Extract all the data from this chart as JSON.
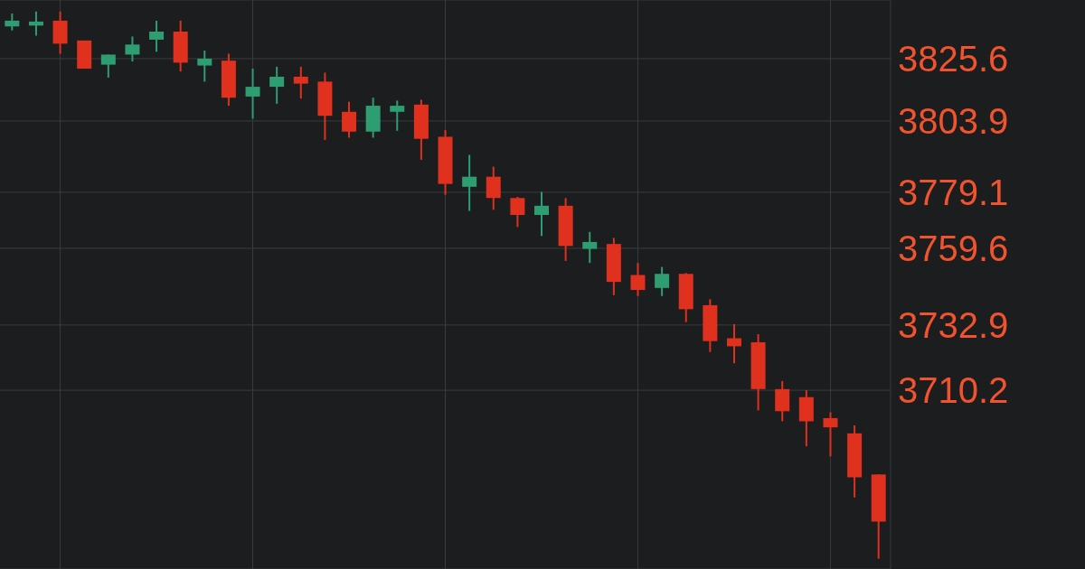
{
  "chart_data": {
    "type": "candlestick",
    "categories": [
      null,
      null,
      null,
      null,
      null,
      null,
      null,
      null,
      null,
      null,
      null,
      null,
      null,
      null,
      null,
      null,
      null,
      null,
      null,
      null,
      null,
      null,
      null,
      null,
      null,
      null,
      null,
      null,
      null,
      null,
      null,
      null,
      null,
      null,
      null,
      null,
      null
    ],
    "ohlc": [
      [
        3836.8,
        3841.3,
        3835.4,
        3838.8
      ],
      [
        3837.1,
        3842.0,
        3833.6,
        3838.5
      ],
      [
        3838.8,
        3842.0,
        3827.3,
        3830.8
      ],
      [
        3831.9,
        3831.9,
        3822.1,
        3822.1
      ],
      [
        3823.5,
        3827.0,
        3819.0,
        3827.0
      ],
      [
        3827.0,
        3833.3,
        3824.6,
        3830.5
      ],
      [
        3832.2,
        3838.8,
        3828.0,
        3835.0
      ],
      [
        3835.0,
        3838.8,
        3821.1,
        3824.2
      ],
      [
        3823.2,
        3828.4,
        3817.6,
        3825.6
      ],
      [
        3824.9,
        3827.3,
        3809.2,
        3812.0
      ],
      [
        3812.4,
        3822.1,
        3804.7,
        3815.8
      ],
      [
        3815.8,
        3822.8,
        3809.9,
        3819.3
      ],
      [
        3819.3,
        3822.8,
        3811.7,
        3816.9
      ],
      [
        3817.6,
        3820.7,
        3797.3,
        3805.7
      ],
      [
        3807.1,
        3810.6,
        3798.1,
        3800.2
      ],
      [
        3800.2,
        3812.0,
        3798.1,
        3809.2
      ],
      [
        3807.1,
        3811.0,
        3800.5,
        3809.2
      ],
      [
        3809.6,
        3811.3,
        3790.4,
        3797.7
      ],
      [
        3798.4,
        3800.8,
        3778.2,
        3782.0
      ],
      [
        3781.0,
        3792.1,
        3772.6,
        3784.5
      ],
      [
        3784.5,
        3788.0,
        3773.0,
        3777.1
      ],
      [
        3777.1,
        3777.5,
        3767.0,
        3771.2
      ],
      [
        3771.2,
        3779.2,
        3763.9,
        3774.4
      ],
      [
        3774.4,
        3777.1,
        3755.2,
        3760.4
      ],
      [
        3759.4,
        3765.3,
        3754.5,
        3761.8
      ],
      [
        3761.1,
        3763.2,
        3743.3,
        3747.9
      ],
      [
        3750.3,
        3754.5,
        3743.0,
        3745.1
      ],
      [
        3745.8,
        3753.1,
        3743.0,
        3750.7
      ],
      [
        3750.7,
        3751.0,
        3733.9,
        3738.4
      ],
      [
        3739.8,
        3741.9,
        3723.5,
        3727.3
      ],
      [
        3728.3,
        3733.2,
        3719.6,
        3725.5
      ],
      [
        3726.9,
        3729.7,
        3703.2,
        3710.6
      ],
      [
        3710.6,
        3713.4,
        3699.4,
        3702.9
      ],
      [
        3707.8,
        3710.2,
        3690.7,
        3699.4
      ],
      [
        3700.5,
        3702.5,
        3687.2,
        3697.3
      ],
      [
        3695.2,
        3698.0,
        3672.9,
        3679.9
      ],
      [
        3680.9,
        3680.9,
        3651.6,
        3664.5
      ]
    ],
    "colors": [
      "#2e9e72",
      "#2e9e72",
      "#e0301e",
      "#e0301e",
      "#2e9e72",
      "#2e9e72",
      "#2e9e72",
      "#e0301e",
      "#2e9e72",
      "#e0301e",
      "#2e9e72",
      "#2e9e72",
      "#e0301e",
      "#e0301e",
      "#e0301e",
      "#2e9e72",
      "#2e9e72",
      "#e0301e",
      "#e0301e",
      "#2e9e72",
      "#e0301e",
      "#e0301e",
      "#2e9e72",
      "#e0301e",
      "#2e9e72",
      "#e0301e",
      "#e0301e",
      "#2e9e72",
      "#e0301e",
      "#e0301e",
      "#e0301e",
      "#e0301e",
      "#e0301e",
      "#e0301e",
      "#e0301e",
      "#e0301e",
      "#e0301e"
    ],
    "ylim": [
      3648,
      3846
    ],
    "yticks": [
      3825.6,
      3803.9,
      3779.1,
      3759.6,
      3732.9,
      3710.2
    ],
    "grid": true,
    "tick_labels": "y"
  }
}
